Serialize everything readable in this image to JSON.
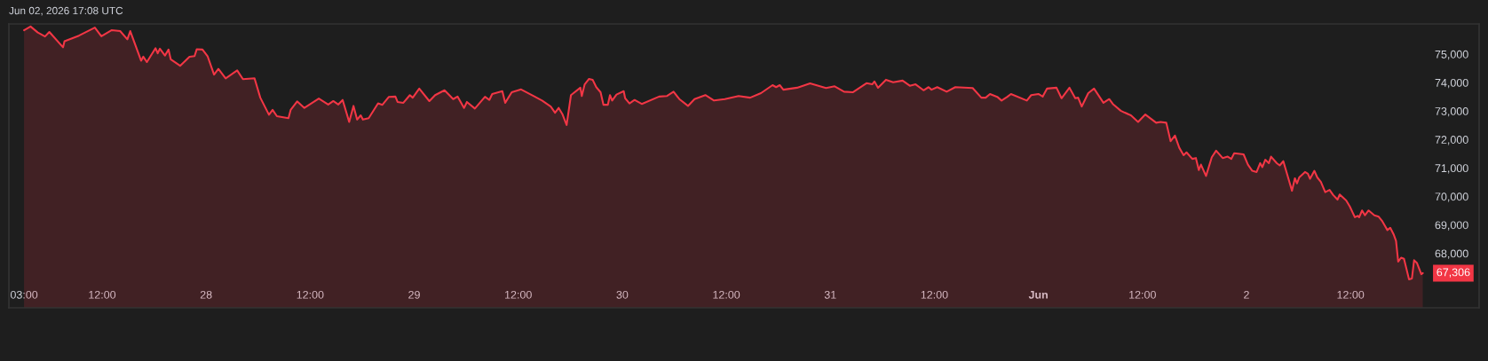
{
  "chart_data": {
    "type": "area",
    "annotations": [
      "Jun 02, 2026 17:08 UTC",
      {
        "text": "67,306",
        "x": "2026-06-02T20:20",
        "y": 67306
      }
    ],
    "x": [
      "2026-05-27T03:00",
      "2026-05-27T03:45",
      "2026-05-27T04:35",
      "2026-05-27T05:25",
      "2026-05-27T05:55",
      "2026-05-27T07:30",
      "2026-05-27T07:40",
      "2026-05-27T09:20",
      "2026-05-27T11:10",
      "2026-05-27T11:55",
      "2026-05-27T13:05",
      "2026-05-27T14:05",
      "2026-05-27T14:55",
      "2026-05-27T15:15",
      "2026-05-27T16:30",
      "2026-05-27T16:45",
      "2026-05-27T17:10",
      "2026-05-27T18:10",
      "2026-05-27T18:25",
      "2026-05-27T18:40",
      "2026-05-27T19:15",
      "2026-05-27T19:40",
      "2026-05-27T19:55",
      "2026-05-27T21:00",
      "2026-05-27T22:05",
      "2026-05-27T22:40",
      "2026-05-27T22:55",
      "2026-05-27T23:35",
      "2026-05-28T00:10",
      "2026-05-28T00:55",
      "2026-05-28T01:25",
      "2026-05-28T02:15",
      "2026-05-28T03:35",
      "2026-05-28T04:15",
      "2026-05-28T05:35",
      "2026-05-28T06:15",
      "2026-05-28T07:15",
      "2026-05-28T07:40",
      "2026-05-28T08:10",
      "2026-05-28T09:30",
      "2026-05-28T09:45",
      "2026-05-28T10:30",
      "2026-05-28T11:20",
      "2026-05-28T13:00",
      "2026-05-28T14:05",
      "2026-05-28T14:40",
      "2026-05-28T15:15",
      "2026-05-28T15:45",
      "2026-05-28T16:30",
      "2026-05-28T17:00",
      "2026-05-28T17:25",
      "2026-05-28T17:50",
      "2026-05-28T18:05",
      "2026-05-28T18:45",
      "2026-05-28T19:50",
      "2026-05-28T20:20",
      "2026-05-28T21:05",
      "2026-05-28T21:50",
      "2026-05-28T22:05",
      "2026-05-28T22:45",
      "2026-05-28T23:30",
      "2026-05-28T23:50",
      "2026-05-29T00:35",
      "2026-05-29T01:45",
      "2026-05-29T02:25",
      "2026-05-29T03:30",
      "2026-05-29T04:30",
      "2026-05-29T05:00",
      "2026-05-29T05:45",
      "2026-05-29T06:05",
      "2026-05-29T07:00",
      "2026-05-29T08:10",
      "2026-05-29T08:40",
      "2026-05-29T09:00",
      "2026-05-29T10:10",
      "2026-05-29T10:30",
      "2026-05-29T11:15",
      "2026-05-29T12:20",
      "2026-05-29T13:45",
      "2026-05-29T14:45",
      "2026-05-29T15:45",
      "2026-05-29T16:15",
      "2026-05-29T16:40",
      "2026-05-29T17:05",
      "2026-05-29T17:35",
      "2026-05-29T18:05",
      "2026-05-29T19:10",
      "2026-05-29T19:20",
      "2026-05-29T19:40",
      "2026-05-29T20:10",
      "2026-05-29T20:35",
      "2026-05-29T21:00",
      "2026-05-29T21:30",
      "2026-05-29T21:50",
      "2026-05-29T22:20",
      "2026-05-29T22:35",
      "2026-05-29T22:50",
      "2026-05-29T23:20",
      "2026-05-30T00:10",
      "2026-05-30T00:20",
      "2026-05-30T00:50",
      "2026-05-30T01:25",
      "2026-05-30T02:15",
      "2026-05-30T04:15",
      "2026-05-30T05:10",
      "2026-05-30T05:55",
      "2026-05-30T06:35",
      "2026-05-30T07:35",
      "2026-05-30T08:20",
      "2026-05-30T09:35",
      "2026-05-30T10:35",
      "2026-05-30T11:50",
      "2026-05-30T13:25",
      "2026-05-30T14:45",
      "2026-05-30T16:00",
      "2026-05-30T17:20",
      "2026-05-30T17:45",
      "2026-05-30T18:10",
      "2026-05-30T18:35",
      "2026-05-30T20:10",
      "2026-05-30T21:40",
      "2026-05-30T23:30",
      "2026-05-31T00:30",
      "2026-05-31T01:35",
      "2026-05-31T02:35",
      "2026-05-31T04:10",
      "2026-05-31T04:50",
      "2026-05-31T05:05",
      "2026-05-31T05:30",
      "2026-05-31T06:25",
      "2026-05-31T07:15",
      "2026-05-31T08:20",
      "2026-05-31T09:10",
      "2026-05-31T09:50",
      "2026-05-31T10:45",
      "2026-05-31T11:20",
      "2026-05-31T11:40",
      "2026-05-31T12:20",
      "2026-05-31T13:25",
      "2026-05-31T14:25",
      "2026-05-31T16:25",
      "2026-05-31T17:25",
      "2026-05-31T17:55",
      "2026-05-31T18:25",
      "2026-05-31T19:15",
      "2026-05-31T19:45",
      "2026-05-31T20:25",
      "2026-05-31T20:50",
      "2026-05-31T22:40",
      "2026-05-31T23:10",
      "2026-06-01T00:00",
      "2026-06-01T00:30",
      "2026-06-01T01:00",
      "2026-06-01T02:05",
      "2026-06-01T02:40",
      "2026-06-01T03:35",
      "2026-06-01T04:15",
      "2026-06-01T04:35",
      "2026-06-01T05:00",
      "2026-06-01T05:45",
      "2026-06-01T06:25",
      "2026-06-01T07:30",
      "2026-06-01T08:10",
      "2026-06-01T08:35",
      "2026-06-01T09:30",
      "2026-06-01T09:55",
      "2026-06-01T10:40",
      "2026-06-01T11:30",
      "2026-06-01T12:20",
      "2026-06-01T13:35",
      "2026-06-01T14:05",
      "2026-06-01T14:45",
      "2026-06-01T15:15",
      "2026-06-01T15:45",
      "2026-06-01T16:15",
      "2026-06-01T16:45",
      "2026-06-01T17:05",
      "2026-06-01T17:45",
      "2026-06-01T18:10",
      "2026-06-01T18:30",
      "2026-06-01T18:45",
      "2026-06-01T19:20",
      "2026-06-01T20:00",
      "2026-06-01T20:30",
      "2026-06-01T21:15",
      "2026-06-01T21:50",
      "2026-06-01T22:15",
      "2026-06-01T22:35",
      "2026-06-01T23:40",
      "2026-06-02T00:10",
      "2026-06-02T00:40",
      "2026-06-02T01:10",
      "2026-06-02T01:35",
      "2026-06-02T01:50",
      "2026-06-02T02:10",
      "2026-06-02T02:35",
      "2026-06-02T02:50",
      "2026-06-02T03:30",
      "2026-06-02T03:50",
      "2026-06-02T04:15",
      "2026-06-02T05:15",
      "2026-06-02T05:35",
      "2026-06-02T05:50",
      "2026-06-02T06:05",
      "2026-06-02T06:45",
      "2026-06-02T07:05",
      "2026-06-02T07:20",
      "2026-06-02T07:50",
      "2026-06-02T08:10",
      "2026-06-02T08:35",
      "2026-06-02T09:05",
      "2026-06-02T09:35",
      "2026-06-02T10:00",
      "2026-06-02T10:30",
      "2026-06-02T10:45",
      "2026-06-02T11:30",
      "2026-06-02T11:55",
      "2026-06-02T12:30",
      "2026-06-02T12:50",
      "2026-06-02T13:00",
      "2026-06-02T13:20",
      "2026-06-02T13:40",
      "2026-06-02T14:05",
      "2026-06-02T14:45",
      "2026-06-02T15:15",
      "2026-06-02T15:40",
      "2026-06-02T16:15",
      "2026-06-02T16:35",
      "2026-06-02T17:00",
      "2026-06-02T17:15",
      "2026-06-02T17:30",
      "2026-06-02T17:50",
      "2026-06-02T18:10",
      "2026-06-02T18:45",
      "2026-06-02T19:05",
      "2026-06-02T19:20",
      "2026-06-02T19:40",
      "2026-06-02T20:10",
      "2026-06-02T20:20"
    ],
    "series": [
      {
        "color": "#f23645",
        "values": [
          75840,
          75970,
          75760,
          75620,
          75780,
          75240,
          75450,
          75650,
          75930,
          75630,
          75840,
          75810,
          75520,
          75810,
          74770,
          74910,
          74720,
          75210,
          75030,
          75190,
          74950,
          75160,
          74820,
          74590,
          74910,
          74930,
          75170,
          75160,
          74930,
          74280,
          74480,
          74150,
          74430,
          74120,
          74150,
          73470,
          72870,
          73040,
          72820,
          72750,
          73040,
          73340,
          73110,
          73440,
          73230,
          73350,
          73230,
          73390,
          72620,
          73180,
          72700,
          72850,
          72700,
          72750,
          73270,
          73220,
          73500,
          73510,
          73320,
          73290,
          73560,
          73470,
          73790,
          73350,
          73560,
          73730,
          73420,
          73510,
          73110,
          73320,
          73090,
          73500,
          73390,
          73600,
          73700,
          73290,
          73660,
          73760,
          73530,
          73370,
          73160,
          72940,
          73110,
          72900,
          72510,
          73560,
          73820,
          73530,
          73940,
          74130,
          74100,
          73840,
          73660,
          73220,
          73220,
          73560,
          73370,
          73580,
          73700,
          73450,
          73270,
          73390,
          73250,
          73510,
          73530,
          73680,
          73420,
          73180,
          73420,
          73560,
          73370,
          73420,
          73530,
          73470,
          73630,
          73910,
          73840,
          73910,
          73750,
          73820,
          73970,
          73810,
          73870,
          73680,
          73660,
          73980,
          73940,
          74040,
          73820,
          74100,
          74010,
          74070,
          73890,
          73940,
          73730,
          73840,
          73750,
          73840,
          73680,
          73840,
          73810,
          73470,
          73470,
          73600,
          73500,
          73370,
          73500,
          73600,
          73370,
          73560,
          73600,
          73510,
          73790,
          73820,
          73450,
          73820,
          73450,
          73470,
          73160,
          73630,
          73790,
          73290,
          73420,
          73250,
          73010,
          72950,
          72850,
          72620,
          72880,
          72590,
          72620,
          72590,
          71940,
          72140,
          71710,
          71450,
          71550,
          71320,
          71350,
          70930,
          71120,
          70720,
          71380,
          71610,
          71350,
          71400,
          71320,
          71520,
          71480,
          71120,
          70900,
          70860,
          71170,
          71030,
          71290,
          71170,
          71400,
          71170,
          71090,
          71240,
          70200,
          70640,
          70460,
          70670,
          70860,
          70800,
          70620,
          70900,
          70670,
          70510,
          70150,
          70230,
          70050,
          69890,
          70070,
          69860,
          69650,
          69270,
          69320,
          69270,
          69510,
          69340,
          69510,
          69340,
          69290,
          69130,
          68820,
          68900,
          68650,
          68440,
          67710,
          67850,
          67810,
          67090,
          67120,
          67760,
          67660,
          67270,
          67306
        ]
      }
    ],
    "xlim": [
      "2026-05-27T01:15",
      "2026-06-03T02:50"
    ],
    "ylim": [
      66090,
      76060
    ],
    "xticks": [
      {
        "value": "2026-05-27T03:00",
        "label": "03:00"
      },
      {
        "value": "2026-05-27T12:00",
        "label": "12:00"
      },
      {
        "value": "2026-05-28T00:00",
        "label": "28"
      },
      {
        "value": "2026-05-28T12:00",
        "label": "12:00"
      },
      {
        "value": "2026-05-29T00:00",
        "label": "29"
      },
      {
        "value": "2026-05-29T12:00",
        "label": "12:00"
      },
      {
        "value": "2026-05-30T00:00",
        "label": "30"
      },
      {
        "value": "2026-05-30T12:00",
        "label": "12:00"
      },
      {
        "value": "2026-05-31T00:00",
        "label": "31"
      },
      {
        "value": "2026-05-31T12:00",
        "label": "12:00"
      },
      {
        "value": "2026-06-01T00:00",
        "label": "Jun"
      },
      {
        "value": "2026-06-01T12:00",
        "label": "12:00"
      },
      {
        "value": "2026-06-02T00:00",
        "label": "2"
      },
      {
        "value": "2026-06-02T12:00",
        "label": "12:00"
      }
    ],
    "yticks": [
      {
        "value": 68000,
        "label": "68,000"
      },
      {
        "value": 69000,
        "label": "69,000"
      },
      {
        "value": 70000,
        "label": "70,000"
      },
      {
        "value": 71000,
        "label": "71,000"
      },
      {
        "value": 72000,
        "label": "72,000"
      },
      {
        "value": 73000,
        "label": "73,000"
      },
      {
        "value": 74000,
        "label": "74,000"
      },
      {
        "value": 75000,
        "label": "75,000"
      }
    ],
    "grid": false
  }
}
